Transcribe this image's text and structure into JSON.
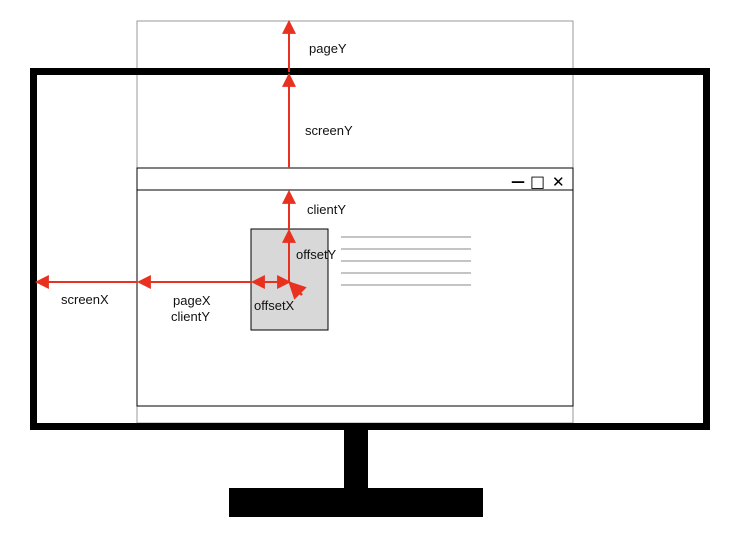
{
  "window_controls": {
    "minimize_glyph": "—",
    "maximize_glyph": "□",
    "close_glyph": "✕"
  },
  "labels": {
    "page_y": "pageY",
    "screen_y": "screenY",
    "client_y": "clientY",
    "offset_y": "offsetY",
    "screen_x": "screenX",
    "page_x": "pageX",
    "page_x_client_y": "clientY",
    "offset_x": "offsetX"
  },
  "colors": {
    "arrow": "#e8311f",
    "monitor": "#000000",
    "page_outline": "#999999",
    "element_fill": "#d8d8d8",
    "text_lines": "#888888"
  }
}
